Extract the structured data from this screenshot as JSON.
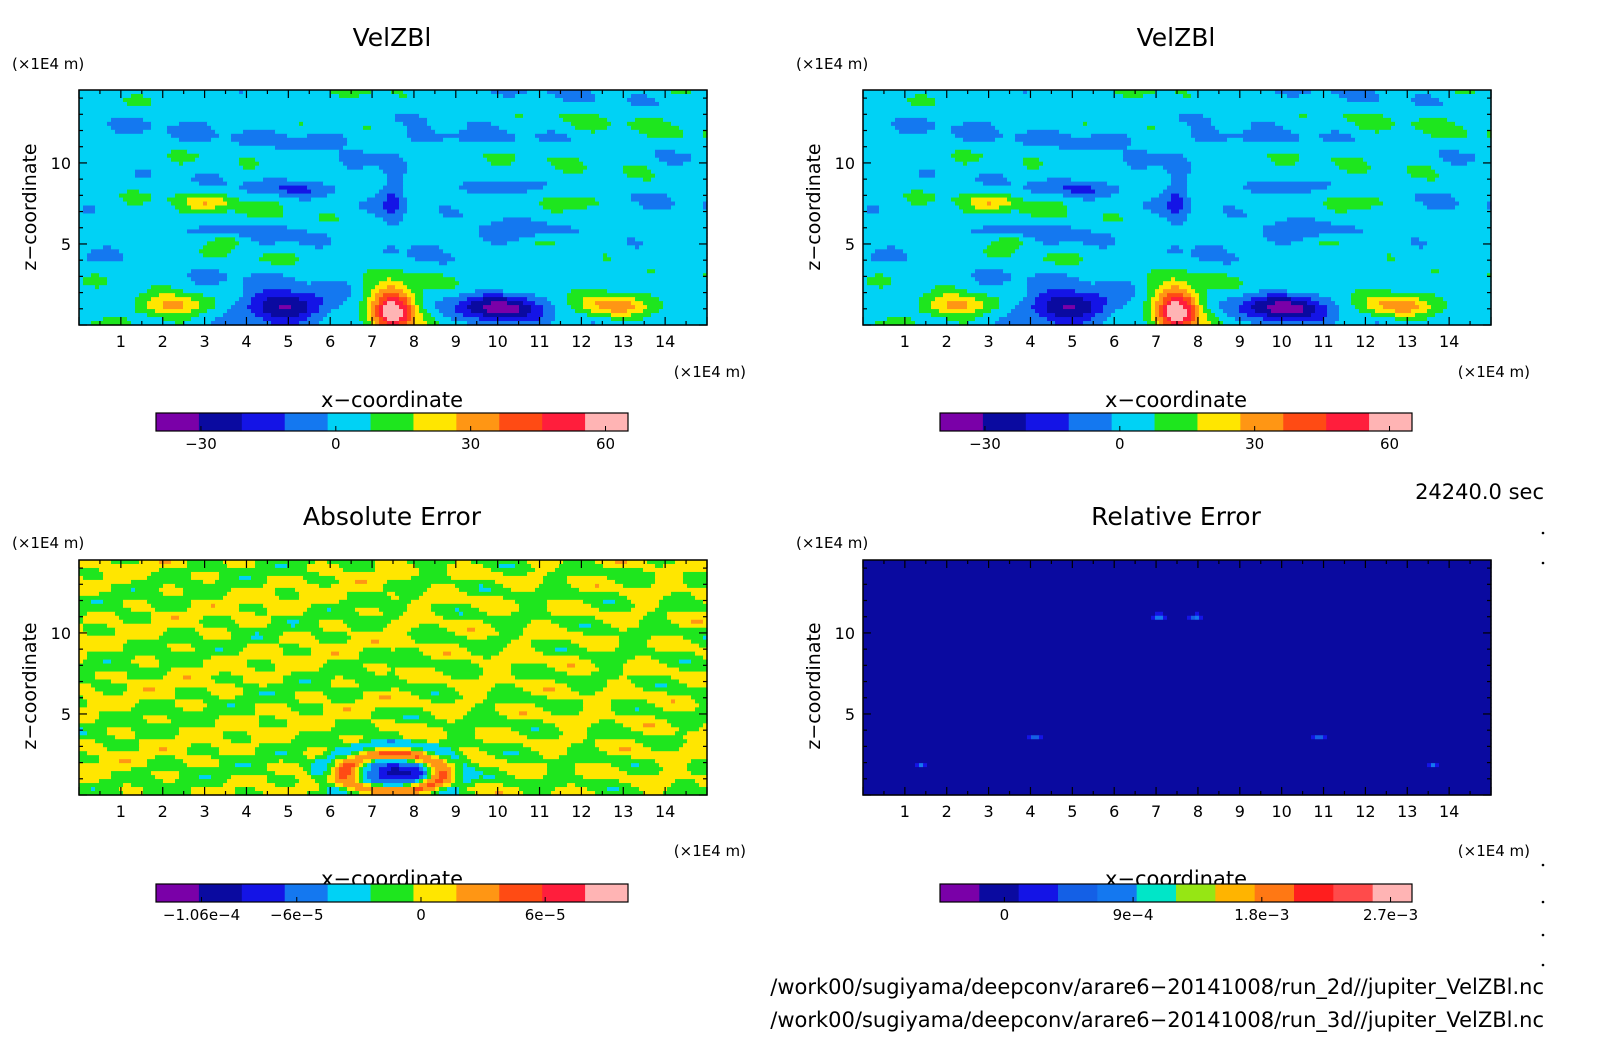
{
  "chart_data": [
    {
      "type": "heatmap",
      "title": "VelZBl",
      "xlabel": "x−coordinate",
      "ylabel": "z−coordinate",
      "x_unit": "(×1E4 m)",
      "y_unit": "(×1E4 m)",
      "xlim": [
        0,
        15
      ],
      "ylim": [
        0,
        14.5
      ],
      "x_ticks": [
        1,
        2,
        3,
        4,
        5,
        6,
        7,
        8,
        9,
        10,
        11,
        12,
        13,
        14
      ],
      "y_ticks": [
        5,
        10
      ],
      "field": "velocity",
      "colorbar": {
        "range": [
          -40,
          65
        ],
        "tick_values": [
          -30,
          0,
          30,
          60
        ],
        "tick_labels": [
          "−30",
          "0",
          "30",
          "60"
        ],
        "colors": [
          "#7a00a8",
          "#0a0aa0",
          "#1414e6",
          "#1478f0",
          "#00d2f5",
          "#1ee61e",
          "#ffe600",
          "#ff9614",
          "#ff4b14",
          "#ff1e3c",
          "#ffb4b4"
        ]
      }
    },
    {
      "type": "heatmap",
      "title": "VelZBl",
      "xlabel": "x−coordinate",
      "ylabel": "z−coordinate",
      "x_unit": "(×1E4 m)",
      "y_unit": "(×1E4 m)",
      "xlim": [
        0,
        15
      ],
      "ylim": [
        0,
        14.5
      ],
      "x_ticks": [
        1,
        2,
        3,
        4,
        5,
        6,
        7,
        8,
        9,
        10,
        11,
        12,
        13,
        14
      ],
      "y_ticks": [
        5,
        10
      ],
      "field": "velocity",
      "colorbar": {
        "range": [
          -40,
          65
        ],
        "tick_values": [
          -30,
          0,
          30,
          60
        ],
        "tick_labels": [
          "−30",
          "0",
          "30",
          "60"
        ],
        "colors": [
          "#7a00a8",
          "#0a0aa0",
          "#1414e6",
          "#1478f0",
          "#00d2f5",
          "#1ee61e",
          "#ffe600",
          "#ff9614",
          "#ff4b14",
          "#ff1e3c",
          "#ffb4b4"
        ]
      }
    },
    {
      "type": "heatmap",
      "title": "Absolute Error",
      "xlabel": "x−coordinate",
      "ylabel": "z−coordinate",
      "x_unit": "(×1E4 m)",
      "y_unit": "(×1E4 m)",
      "xlim": [
        0,
        15
      ],
      "ylim": [
        0,
        14.5
      ],
      "x_ticks": [
        1,
        2,
        3,
        4,
        5,
        6,
        7,
        8,
        9,
        10,
        11,
        12,
        13,
        14
      ],
      "y_ticks": [
        5,
        10
      ],
      "field": "abs_error",
      "colorbar": {
        "range": [
          -0.000128,
          0.0001
        ],
        "tick_values": [
          -0.000106,
          -6e-05,
          0,
          6e-05
        ],
        "tick_labels": [
          "−1.06e−4",
          "−6e−5",
          "0",
          "6e−5"
        ],
        "colors": [
          "#7a00a8",
          "#0a0aa0",
          "#1414e6",
          "#1478f0",
          "#00d2f5",
          "#1ee61e",
          "#ffe600",
          "#ff9614",
          "#ff4b14",
          "#ff1e3c",
          "#ffb4b4"
        ]
      }
    },
    {
      "type": "heatmap",
      "title": "Relative Error",
      "xlabel": "x−coordinate",
      "ylabel": "z−coordinate",
      "x_unit": "(×1E4 m)",
      "y_unit": "(×1E4 m)",
      "xlim": [
        0,
        15
      ],
      "ylim": [
        0,
        14.5
      ],
      "x_ticks": [
        1,
        2,
        3,
        4,
        5,
        6,
        7,
        8,
        9,
        10,
        11,
        12,
        13,
        14
      ],
      "y_ticks": [
        5,
        10
      ],
      "field": "rel_error",
      "colorbar": {
        "range": [
          -0.00045,
          0.00285
        ],
        "tick_values": [
          0,
          0.0009,
          0.0018,
          0.0027
        ],
        "tick_labels": [
          "0",
          "9e−4",
          "1.8e−3",
          "2.7e−3"
        ],
        "colors": [
          "#7a00a8",
          "#0a0aa0",
          "#1414e6",
          "#1460e6",
          "#1478f0",
          "#00e6c8",
          "#96e614",
          "#ffb400",
          "#ff7814",
          "#ff1e1e",
          "#ff4b4b",
          "#ffb4b4"
        ]
      }
    }
  ],
  "time_label": "24240.0 sec",
  "file_paths": [
    "/work00/sugiyama/deepconv/arare6−20141008/run_2d//jupiter_VelZBl.nc",
    "/work00/sugiyama/deepconv/arare6−20141008/run_3d//jupiter_VelZBl.nc"
  ]
}
